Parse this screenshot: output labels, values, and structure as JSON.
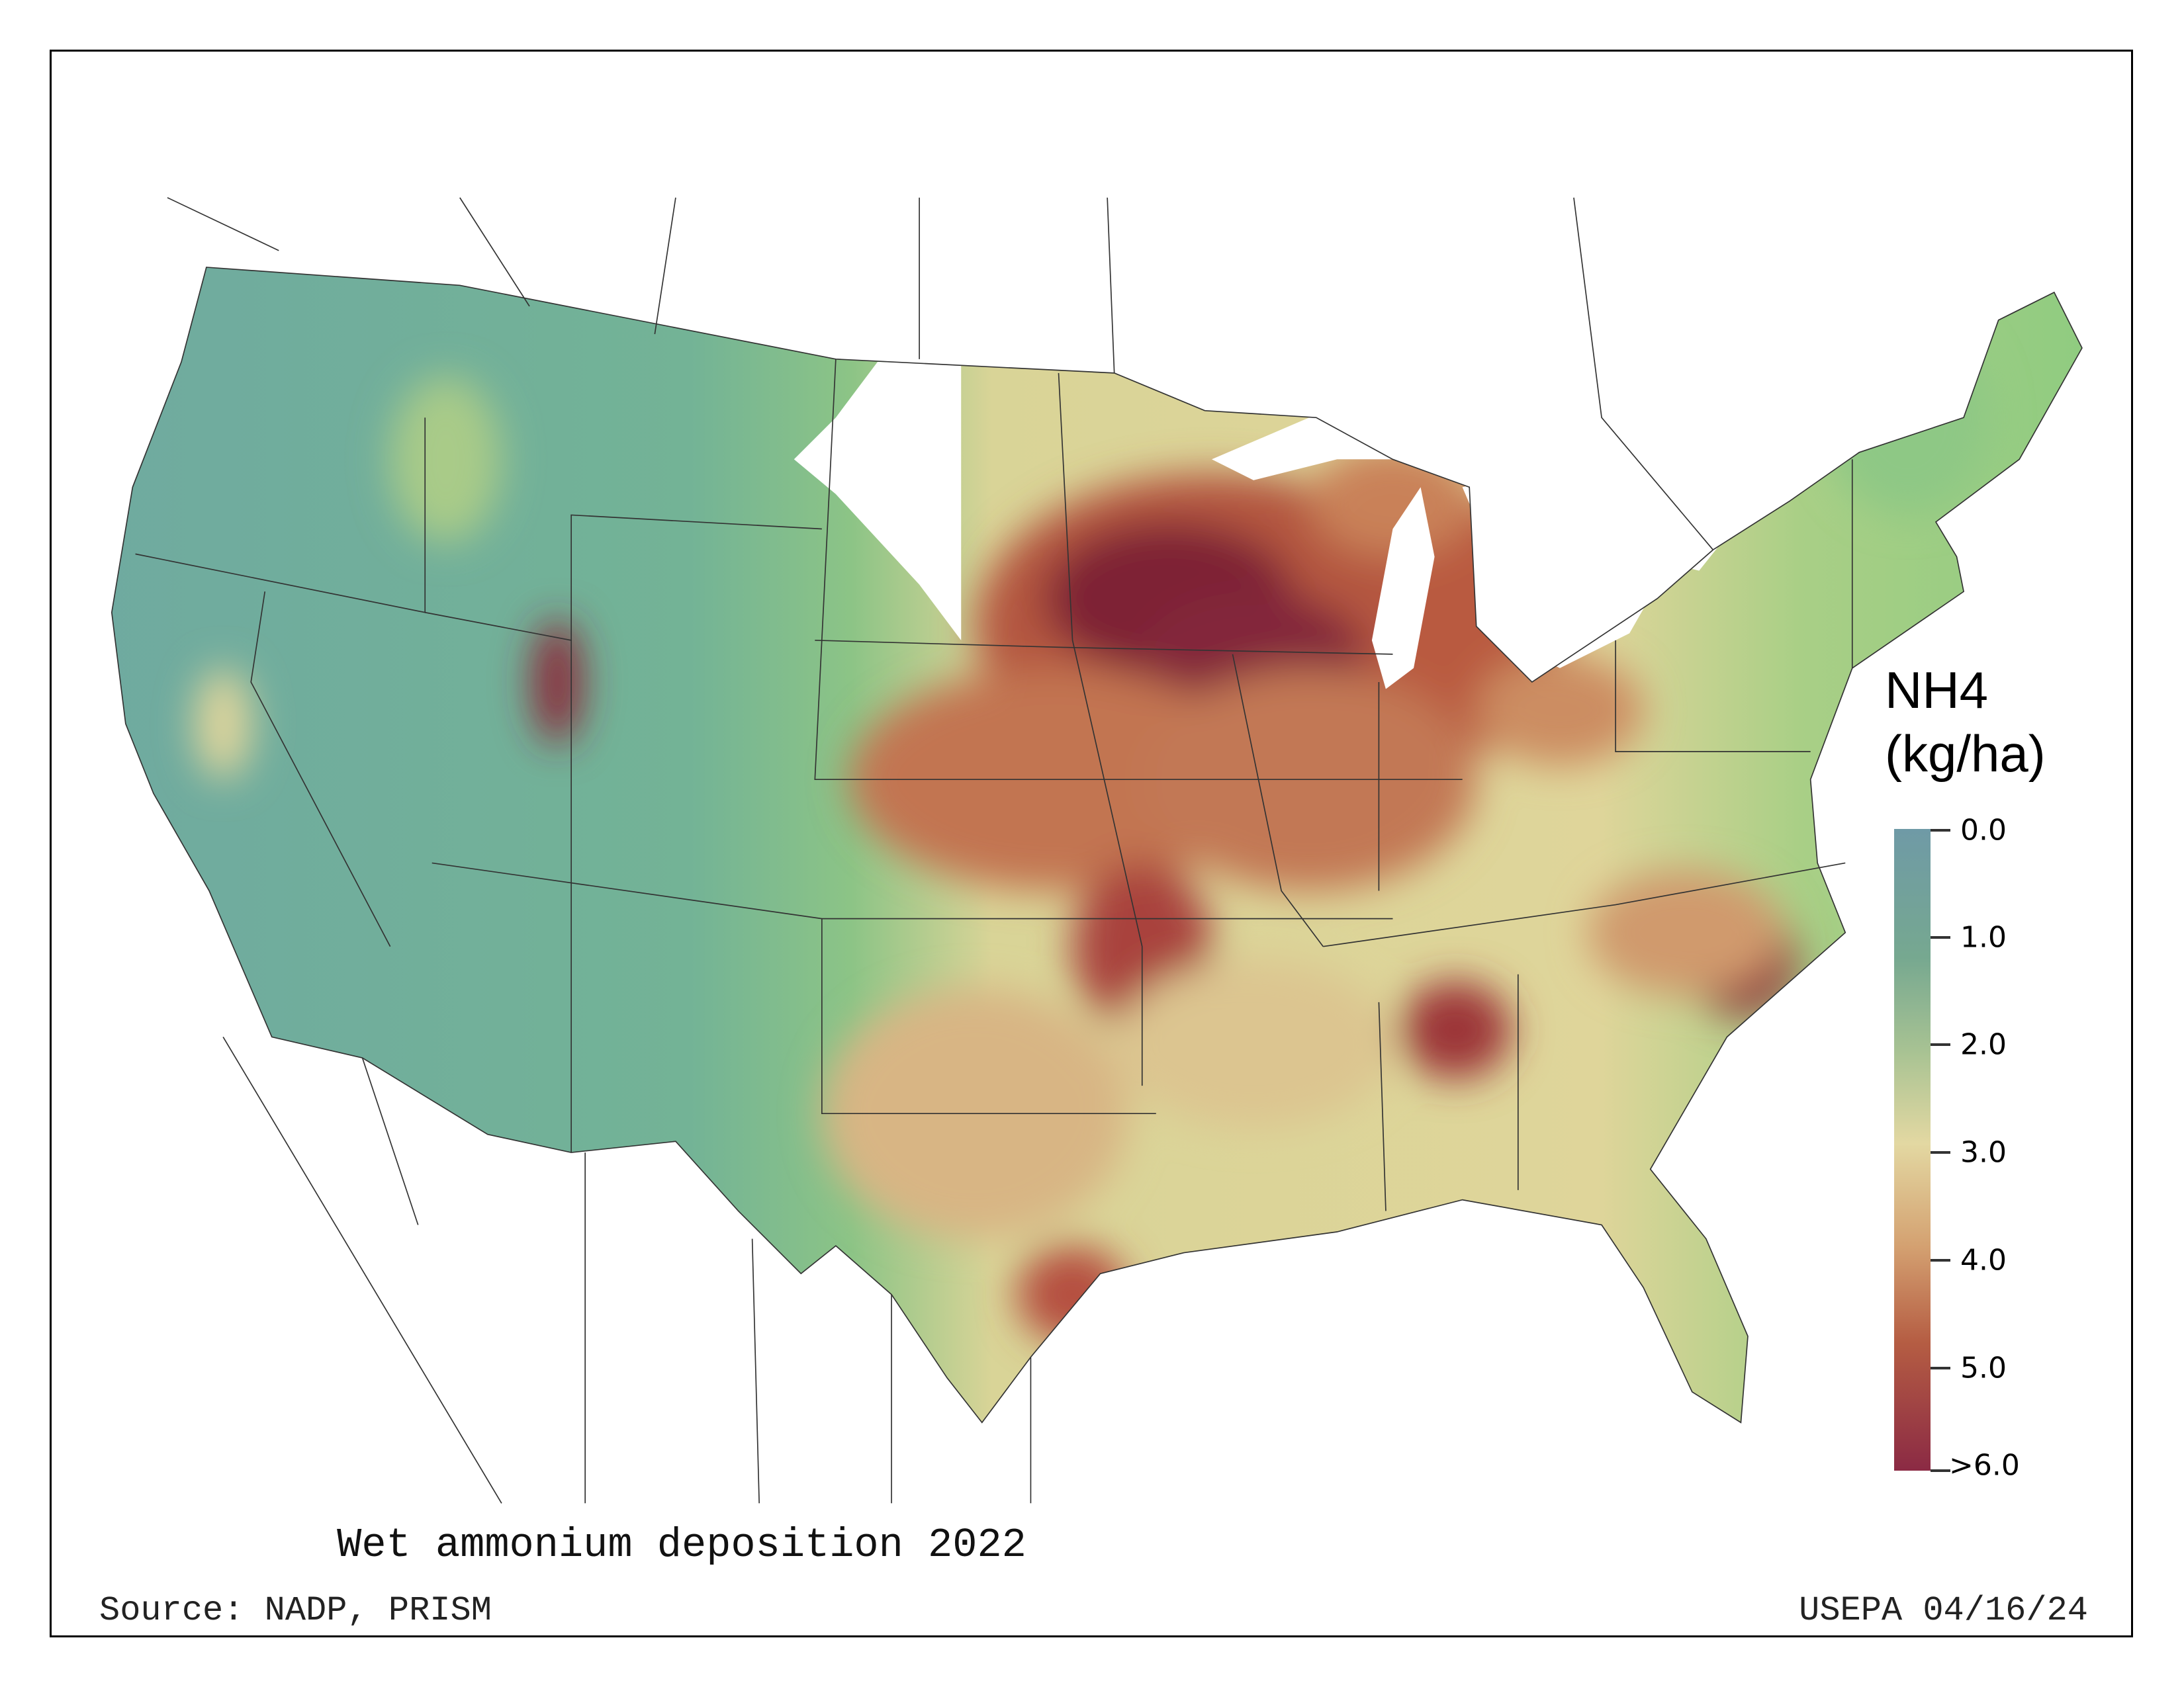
{
  "map": {
    "title": "Wet ammonium deposition 2022",
    "source": "Source: NADP, PRISM",
    "agency_date": "USEPA 04/16/24",
    "legend": {
      "title_line1": "NH4",
      "title_line2": "(kg/ha)",
      "ticks": [
        "0.0",
        "1.0",
        "2.0",
        "3.0",
        "4.0",
        "5.0",
        ">6.0"
      ],
      "colors": [
        "#6f9aa6",
        "#76a890",
        "#a9c393",
        "#e3d8a2",
        "#d4a171",
        "#b55d43",
        "#8b2a44"
      ]
    }
  }
}
